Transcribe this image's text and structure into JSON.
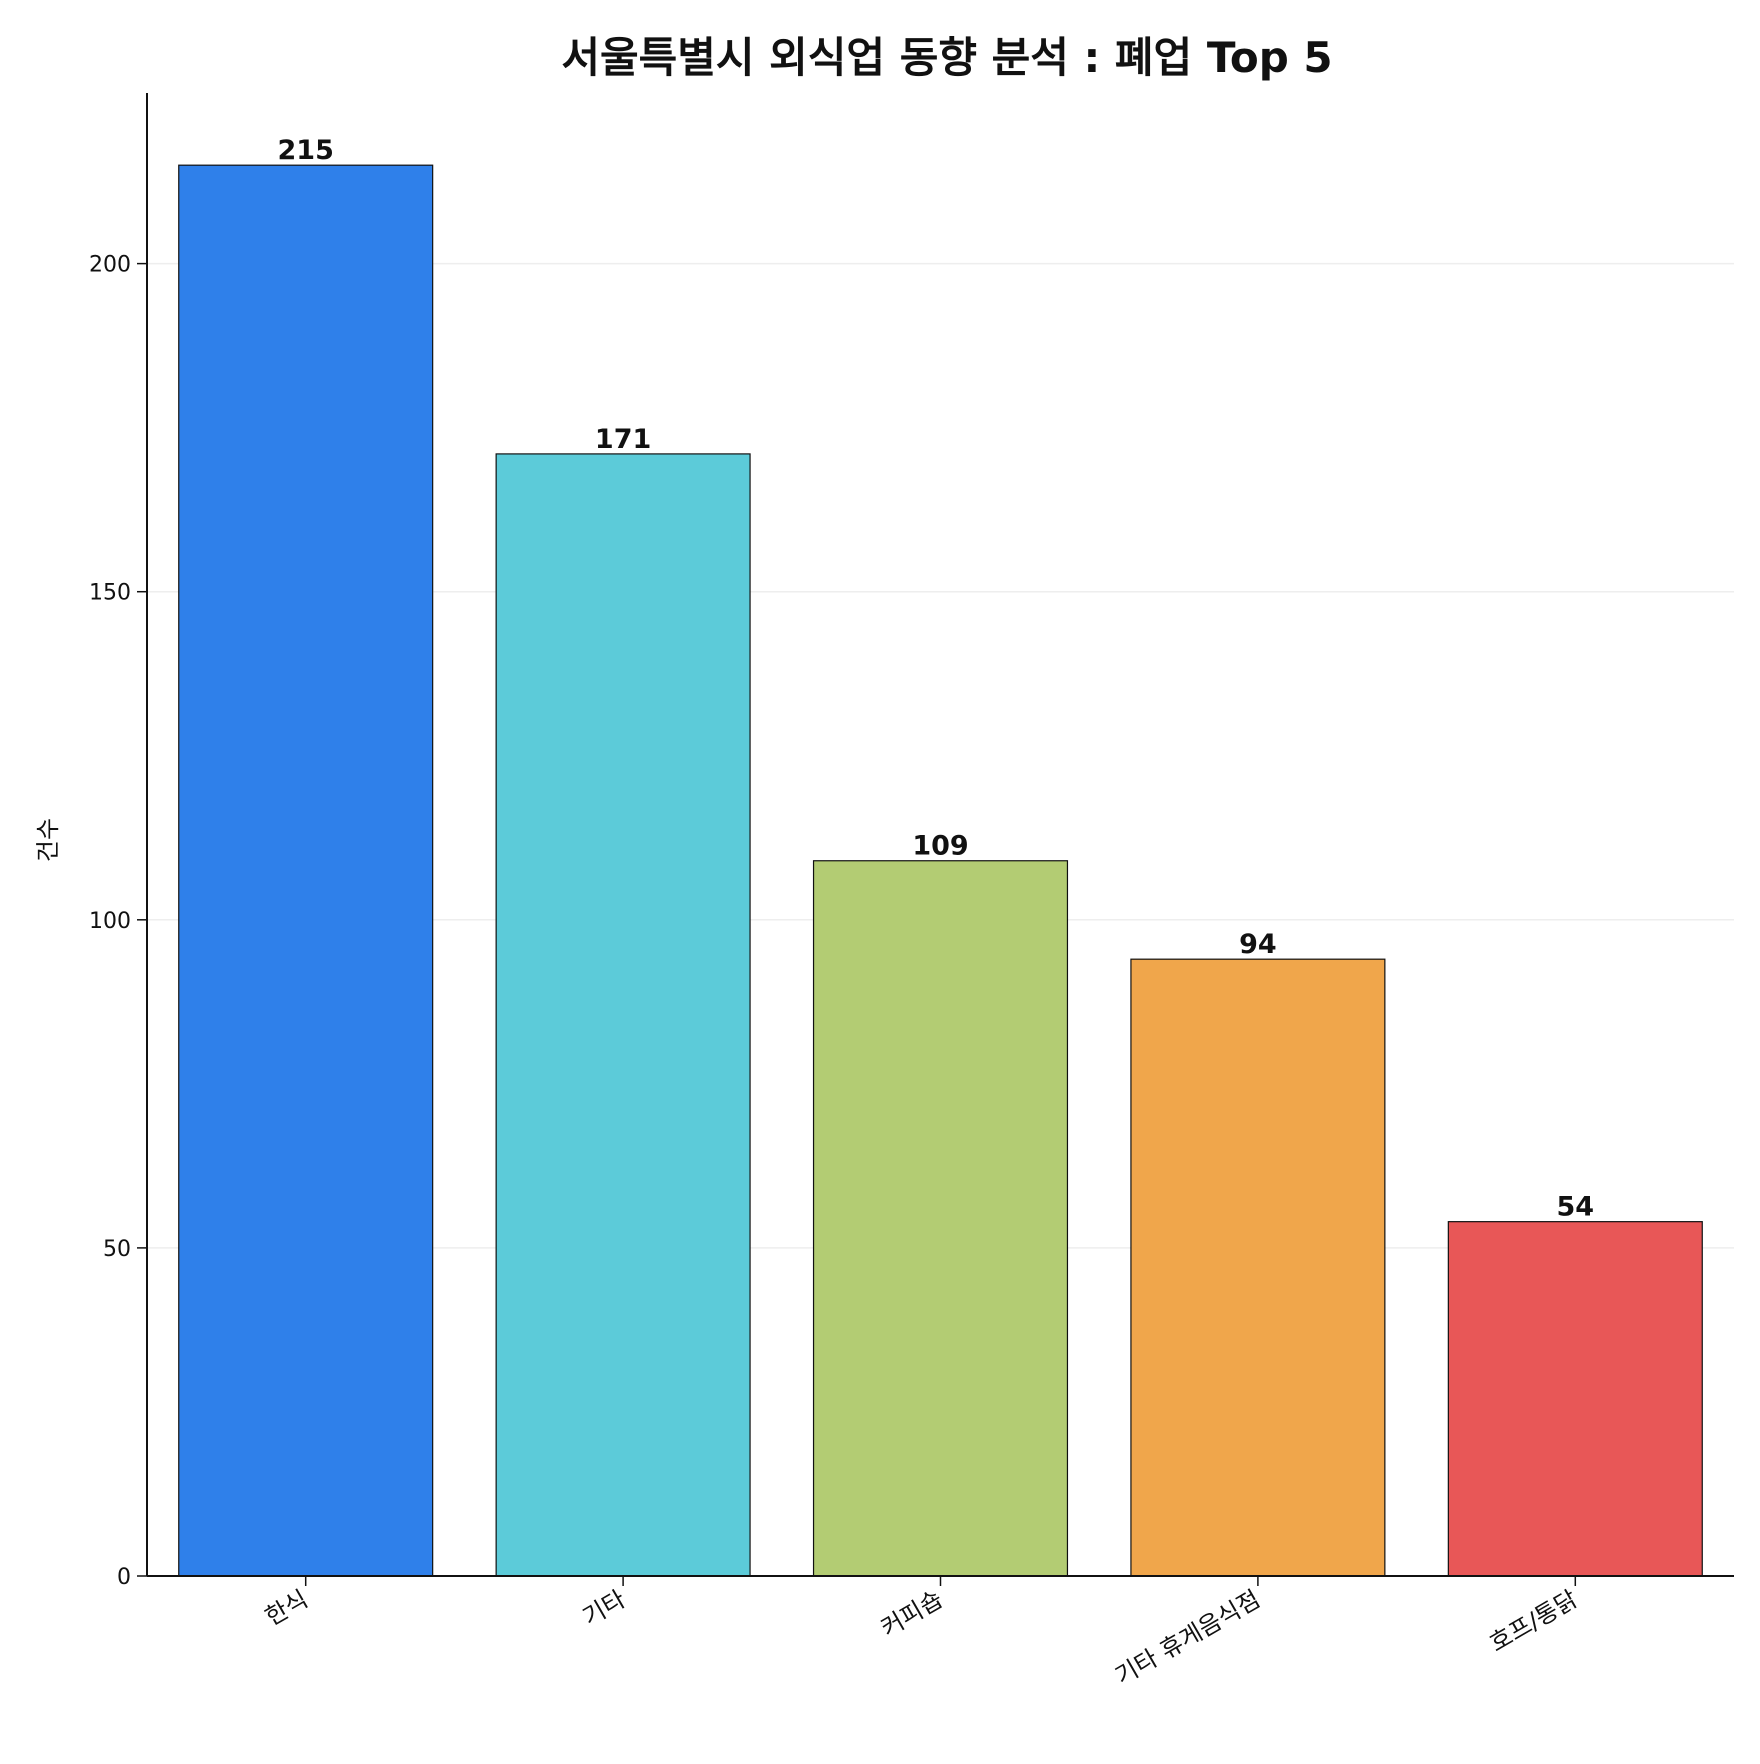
{
  "chart_data": {
    "type": "bar",
    "title": "서울특별시 외식업 동향 분석 : 폐업 Top 5",
    "xlabel": "",
    "ylabel": "건수",
    "categories": [
      "한식",
      "기타",
      "커피숍",
      "기타 휴게음식점",
      "호프/통닭"
    ],
    "values": [
      215,
      171,
      109,
      94,
      54
    ],
    "data_labels": [
      "215",
      "171",
      "109",
      "94",
      "54"
    ],
    "colors": [
      "#2f80ea",
      "#5ccbd9",
      "#b3cc73",
      "#f0a64b",
      "#e85757"
    ],
    "yticks": [
      0,
      50,
      100,
      150,
      200
    ],
    "ytick_labels": [
      "0",
      "50",
      "100",
      "150",
      "200"
    ],
    "ylim": [
      0,
      226
    ],
    "grid": "horizontal",
    "legend": "none"
  }
}
